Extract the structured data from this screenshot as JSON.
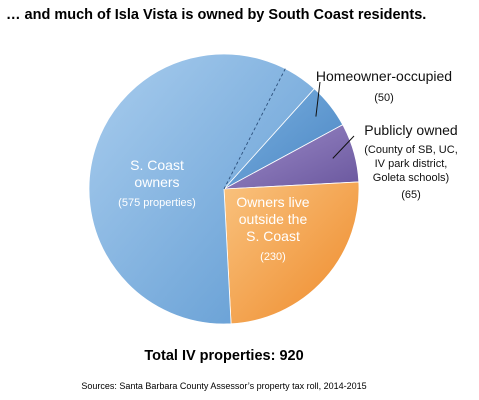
{
  "chart_data": {
    "type": "pie",
    "title": "… and much of Isla Vista is owned by South Coast residents.",
    "total_label": "Total IV properties: 920",
    "source": "Sources: Santa Barbara County Assessor’s property tax roll, 2014-2015",
    "slices": [
      {
        "name": "Homeowner-occupied",
        "name_lines": [
          "Homeowner-occupied"
        ],
        "value": 50,
        "value_label": "(50)",
        "detail_lines": [],
        "color": "#5a95cf"
      },
      {
        "name": "Publicly owned",
        "name_lines": [
          "Publicly owned"
        ],
        "value": 65,
        "value_label": "(65)",
        "detail_lines": [
          "(County of SB, UC,",
          "IV park district,",
          "Goleta schools)"
        ],
        "color": "#7b68ae"
      },
      {
        "name": "Owners live outside the S. Coast",
        "name_lines": [
          "Owners live",
          "outside the",
          "S. Coast"
        ],
        "value": 230,
        "value_label": "(230)",
        "detail_lines": [],
        "color": "#f3a042"
      },
      {
        "name": "S. Coast owners",
        "name_lines": [
          "S. Coast",
          "owners"
        ],
        "value": 575,
        "value_label": "(575 properties)",
        "detail_lines": [],
        "color": "#7eb3df"
      }
    ]
  }
}
